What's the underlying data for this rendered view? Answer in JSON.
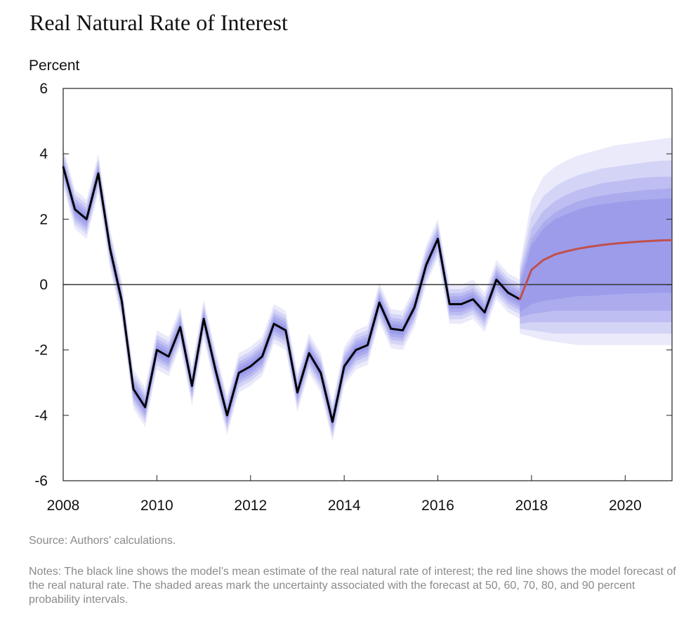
{
  "title": "Real Natural Rate of Interest",
  "source": "Source: Authors’ calculations.",
  "notes": "Notes: The black line shows the model’s mean estimate of the real natural rate of interest; the red line shows the model forecast of the real natural rate. The shaded areas mark the uncertainty associated with the forecast at 50, 60, 70, 80, and 90 percent probability intervals.",
  "colors": {
    "estimate": "#000000",
    "forecast": "#c0504d",
    "band": "#7b7be6",
    "zero_line": "#333333",
    "frame": "#222222"
  },
  "chart_data": {
    "type": "line",
    "title": "Real Natural Rate of Interest",
    "ylabel": "Percent",
    "xlabel": "",
    "xlim": [
      2008,
      2021
    ],
    "ylim": [
      -6,
      6
    ],
    "x_ticks": [
      "2008",
      "2010",
      "2012",
      "2014",
      "2016",
      "2018",
      "2020"
    ],
    "y_ticks": [
      "6",
      "4",
      "2",
      "0",
      "-2",
      "-4",
      "-6"
    ],
    "grid": false,
    "band_levels": [
      "50",
      "60",
      "70",
      "80",
      "90"
    ],
    "band_half_widths_estimate": [
      0.14,
      0.24,
      0.34,
      0.46,
      0.6
    ],
    "series": [
      {
        "role": "estimate",
        "x": [
          2008.0,
          2008.25,
          2008.5,
          2008.75,
          2009.0,
          2009.25,
          2009.5,
          2009.75,
          2010.0,
          2010.25,
          2010.5,
          2010.75,
          2011.0,
          2011.25,
          2011.5,
          2011.75,
          2012.0,
          2012.25,
          2012.5,
          2012.75,
          2013.0,
          2013.25,
          2013.5,
          2013.75,
          2014.0,
          2014.25,
          2014.5,
          2014.75,
          2015.0,
          2015.25,
          2015.5,
          2015.75,
          2016.0,
          2016.25,
          2016.5,
          2016.75,
          2017.0,
          2017.25,
          2017.5,
          2017.75
        ],
        "values": [
          3.6,
          2.3,
          2.0,
          3.4,
          1.1,
          -0.5,
          -3.2,
          -3.75,
          -2.0,
          -2.2,
          -1.3,
          -3.1,
          -1.05,
          -2.6,
          -4.0,
          -2.7,
          -2.5,
          -2.2,
          -1.2,
          -1.4,
          -3.3,
          -2.1,
          -2.7,
          -4.2,
          -2.5,
          -2.0,
          -1.85,
          -0.55,
          -1.35,
          -1.4,
          -0.7,
          0.6,
          1.4,
          -0.6,
          -0.6,
          -0.45,
          -0.85,
          0.15,
          -0.25,
          -0.45
        ]
      },
      {
        "role": "forecast",
        "x": [
          2017.75,
          2018.0,
          2018.25,
          2018.5,
          2018.75,
          2019.0,
          2019.25,
          2019.5,
          2019.75,
          2020.0,
          2020.25,
          2020.5,
          2020.75,
          2021.0
        ],
        "values": [
          -0.45,
          0.45,
          0.75,
          0.92,
          1.02,
          1.1,
          1.16,
          1.21,
          1.25,
          1.28,
          1.31,
          1.33,
          1.35,
          1.36
        ],
        "bands": {
          "90": {
            "lower": [
              -1.5,
              -1.6,
              -1.7,
              -1.75,
              -1.8,
              -1.85,
              -1.85,
              -1.85,
              -1.85,
              -1.85,
              -1.85,
              -1.85,
              -1.85,
              -1.85
            ],
            "upper": [
              0.6,
              2.6,
              3.3,
              3.6,
              3.8,
              3.95,
              4.05,
              4.15,
              4.25,
              4.3,
              4.35,
              4.4,
              4.45,
              4.5
            ]
          },
          "80": {
            "lower": [
              -1.35,
              -1.4,
              -1.45,
              -1.5,
              -1.5,
              -1.5,
              -1.5,
              -1.5,
              -1.5,
              -1.5,
              -1.5,
              -1.5,
              -1.5,
              -1.5
            ],
            "upper": [
              0.45,
              2.1,
              2.7,
              3.0,
              3.2,
              3.35,
              3.45,
              3.55,
              3.6,
              3.65,
              3.7,
              3.75,
              3.78,
              3.8
            ]
          },
          "70": {
            "lower": [
              -1.2,
              -1.15,
              -1.15,
              -1.15,
              -1.15,
              -1.15,
              -1.15,
              -1.15,
              -1.15,
              -1.15,
              -1.15,
              -1.15,
              -1.15,
              -1.15
            ],
            "upper": [
              0.3,
              1.7,
              2.25,
              2.55,
              2.75,
              2.9,
              3.0,
              3.1,
              3.15,
              3.2,
              3.25,
              3.28,
              3.3,
              3.3
            ]
          },
          "60": {
            "lower": [
              -1.0,
              -0.9,
              -0.85,
              -0.8,
              -0.8,
              -0.8,
              -0.8,
              -0.8,
              -0.8,
              -0.8,
              -0.8,
              -0.8,
              -0.8,
              -0.8
            ],
            "upper": [
              0.15,
              1.4,
              1.9,
              2.2,
              2.4,
              2.55,
              2.65,
              2.72,
              2.78,
              2.82,
              2.86,
              2.9,
              2.92,
              2.95
            ]
          },
          "50": {
            "lower": [
              -0.85,
              -0.6,
              -0.5,
              -0.45,
              -0.4,
              -0.35,
              -0.35,
              -0.32,
              -0.3,
              -0.28,
              -0.27,
              -0.26,
              -0.25,
              -0.25
            ],
            "upper": [
              -0.05,
              1.2,
              1.7,
              2.0,
              2.15,
              2.3,
              2.4,
              2.45,
              2.5,
              2.55,
              2.58,
              2.6,
              2.62,
              2.65
            ]
          }
        }
      }
    ]
  }
}
